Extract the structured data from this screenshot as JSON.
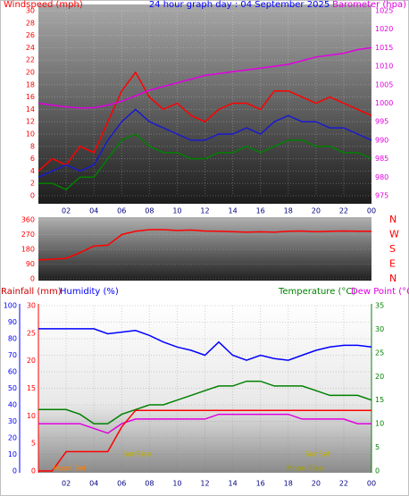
{
  "chart_data": [
    {
      "type": "line",
      "title": "24 hour graph day : 04 September 2025",
      "ylabel": "Windspeed (mph)",
      "y2label": "Barometer (hpa)",
      "x": [
        0,
        1,
        2,
        3,
        4,
        5,
        6,
        7,
        8,
        9,
        10,
        11,
        12,
        13,
        14,
        15,
        16,
        17,
        18,
        19,
        20,
        21,
        22,
        23,
        24
      ],
      "xlim": [
        0,
        24
      ],
      "xticks": [
        {
          "value": 2,
          "label": "02"
        },
        {
          "value": 4,
          "label": "04"
        },
        {
          "value": 6,
          "label": "06"
        },
        {
          "value": 8,
          "label": "08"
        },
        10,
        12,
        14,
        16,
        18,
        20,
        22,
        {
          "value": 24,
          "label": "00"
        }
      ],
      "ylim": [
        0,
        30
      ],
      "yticks": [
        0,
        2,
        4,
        6,
        8,
        10,
        12,
        14,
        16,
        18,
        20,
        22,
        24,
        26,
        28,
        30
      ],
      "y2lim": [
        975,
        1025
      ],
      "y2ticks": [
        975,
        980,
        985,
        990,
        995,
        1000,
        1005,
        1010,
        1015,
        1020,
        1025
      ],
      "series": [
        {
          "color": "#ff0000",
          "values": [
            4,
            6,
            5,
            8,
            7,
            12,
            17,
            20,
            16,
            14,
            15,
            13,
            12,
            14,
            15,
            15,
            14,
            17,
            17,
            16,
            15,
            16,
            15,
            14,
            13
          ]
        },
        {
          "color": "#008000",
          "values": [
            2,
            2,
            1,
            3,
            3,
            6,
            9,
            10,
            8,
            7,
            7,
            6,
            6,
            7,
            7,
            8,
            7,
            8,
            9,
            9,
            8,
            8,
            7,
            7,
            6
          ]
        },
        {
          "color": "#1a1ad0",
          "values": [
            3,
            4,
            5,
            4,
            5,
            9,
            12,
            14,
            12,
            11,
            10,
            9,
            9,
            10,
            10,
            11,
            10,
            12,
            13,
            12,
            12,
            11,
            11,
            10,
            9
          ]
        },
        {
          "color": "#e000e0",
          "axis": "y2",
          "values": [
            1000,
            999.5,
            999,
            998.7,
            998.8,
            999.5,
            1000.5,
            1002,
            1003.5,
            1004.5,
            1005.5,
            1006.5,
            1007.5,
            1008,
            1008.5,
            1009,
            1009.5,
            1010,
            1010.5,
            1011.5,
            1012.5,
            1013,
            1013.5,
            1014.5,
            1015
          ]
        }
      ]
    },
    {
      "type": "line",
      "x": [
        0,
        1,
        2,
        3,
        4,
        5,
        6,
        7,
        8,
        9,
        10,
        11,
        12,
        13,
        14,
        15,
        16,
        17,
        18,
        19,
        20,
        21,
        22,
        23,
        24
      ],
      "xlim": [
        0,
        24
      ],
      "ylim": [
        0,
        360
      ],
      "yticks": [
        0,
        90,
        180,
        270,
        360
      ],
      "y2lim": [
        0,
        360
      ],
      "y2ticks": [
        {
          "value": 0,
          "label": "N"
        },
        {
          "value": 90,
          "label": "E"
        },
        {
          "value": 180,
          "label": "S"
        },
        {
          "value": 270,
          "label": "W"
        },
        {
          "value": 360,
          "label": "N"
        }
      ],
      "series": [
        {
          "color": "#ff0000",
          "values": [
            115,
            120,
            125,
            160,
            200,
            205,
            270,
            290,
            300,
            300,
            295,
            298,
            292,
            290,
            288,
            285,
            287,
            285,
            290,
            292,
            288,
            290,
            292,
            290,
            290
          ]
        }
      ]
    },
    {
      "type": "line",
      "ylabel": "Rainfall (mm)",
      "ylabel2": "Humidity (%)",
      "y2label": "Temperature (°C)",
      "y2label2": "Dew Point (°C)",
      "x": [
        0,
        1,
        2,
        3,
        4,
        5,
        6,
        7,
        8,
        9,
        10,
        11,
        12,
        13,
        14,
        15,
        16,
        17,
        18,
        19,
        20,
        21,
        22,
        23,
        24
      ],
      "xlim": [
        0,
        24
      ],
      "xticks": [
        {
          "value": 2,
          "label": "02"
        },
        {
          "value": 4,
          "label": "04"
        },
        {
          "value": 6,
          "label": "06"
        },
        {
          "value": 8,
          "label": "08"
        },
        10,
        12,
        14,
        16,
        18,
        20,
        22,
        {
          "value": 24,
          "label": "00"
        }
      ],
      "ylim": [
        0,
        100
      ],
      "yticks": [
        0,
        10,
        20,
        30,
        40,
        50,
        60,
        70,
        80,
        90,
        100
      ],
      "y3lim": [
        0,
        30
      ],
      "y3ticks": [
        0,
        5,
        10,
        15,
        20,
        25,
        30
      ],
      "y2lim": [
        0,
        35
      ],
      "y2ticks": [
        0,
        5,
        10,
        15,
        20,
        25,
        30,
        35
      ],
      "series": [
        {
          "color": "#0000ff",
          "values": [
            86,
            86,
            86,
            86,
            86,
            83,
            84,
            85,
            82,
            78,
            75,
            73,
            70,
            78,
            70,
            67,
            70,
            68,
            67,
            70,
            73,
            75,
            76,
            76,
            75
          ]
        },
        {
          "color": "#008000",
          "axis": "y2",
          "values": [
            13,
            13,
            13,
            12,
            10,
            10,
            12,
            13,
            14,
            14,
            15,
            16,
            17,
            18,
            18,
            19,
            19,
            18,
            18,
            18,
            17,
            16,
            16,
            16,
            15
          ]
        },
        {
          "color": "#e000e0",
          "axis": "y2",
          "values": [
            10,
            10,
            10,
            10,
            9,
            8,
            10,
            11,
            11,
            11,
            11,
            11,
            11,
            12,
            12,
            12,
            12,
            12,
            12,
            11,
            11,
            11,
            11,
            10,
            10
          ]
        },
        {
          "color": "#ff0000",
          "axis": "y3",
          "values": [
            0,
            0,
            3.5,
            3.5,
            3.5,
            3.5,
            8,
            11,
            11,
            11,
            11,
            11,
            11,
            11,
            11,
            11,
            11,
            11,
            11,
            11,
            11,
            11,
            11,
            11,
            11
          ]
        }
      ],
      "annotations": [
        {
          "text": "Moon Set",
          "x": 2.25,
          "color": "#ff8000"
        },
        {
          "text": "SunRise",
          "x": 7.1,
          "color": "#c0b000"
        },
        {
          "text": "SunSet",
          "x": 20.1,
          "color": "#c0b000"
        },
        {
          "text": "Moon Rise",
          "x": 19.2,
          "color": "#a0a000"
        }
      ]
    }
  ]
}
